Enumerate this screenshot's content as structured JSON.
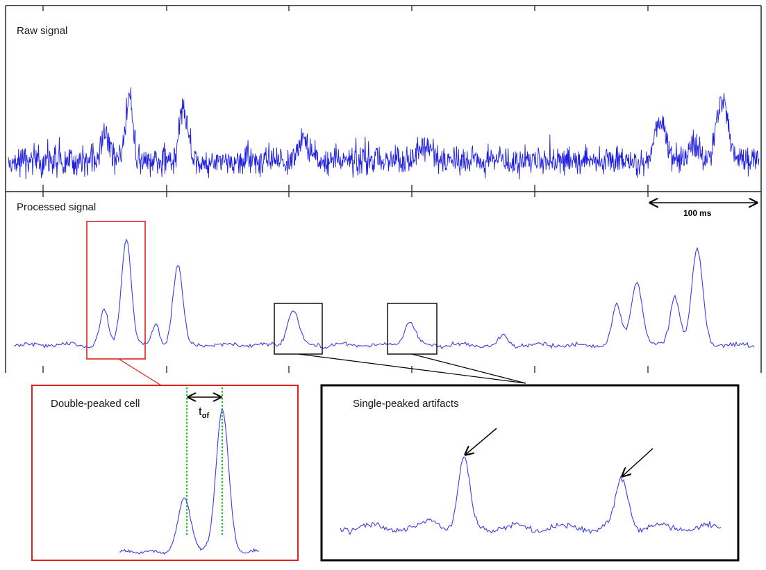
{
  "panels": {
    "raw": {
      "title": "Raw signal"
    },
    "processed": {
      "title": "Processed signal"
    },
    "double": {
      "title": "Double-peaked cell"
    },
    "single": {
      "title": "Single-peaked artifacts"
    }
  },
  "scale_bar": {
    "value": "100",
    "unit": "ms"
  },
  "tof_label": {
    "base": "t",
    "subscript": "of"
  },
  "colors": {
    "signal": "#1f1fe0",
    "processed": "#3a3af0",
    "red_box": "#e02020",
    "black_box": "#000000",
    "marker": "#22bb22"
  }
}
